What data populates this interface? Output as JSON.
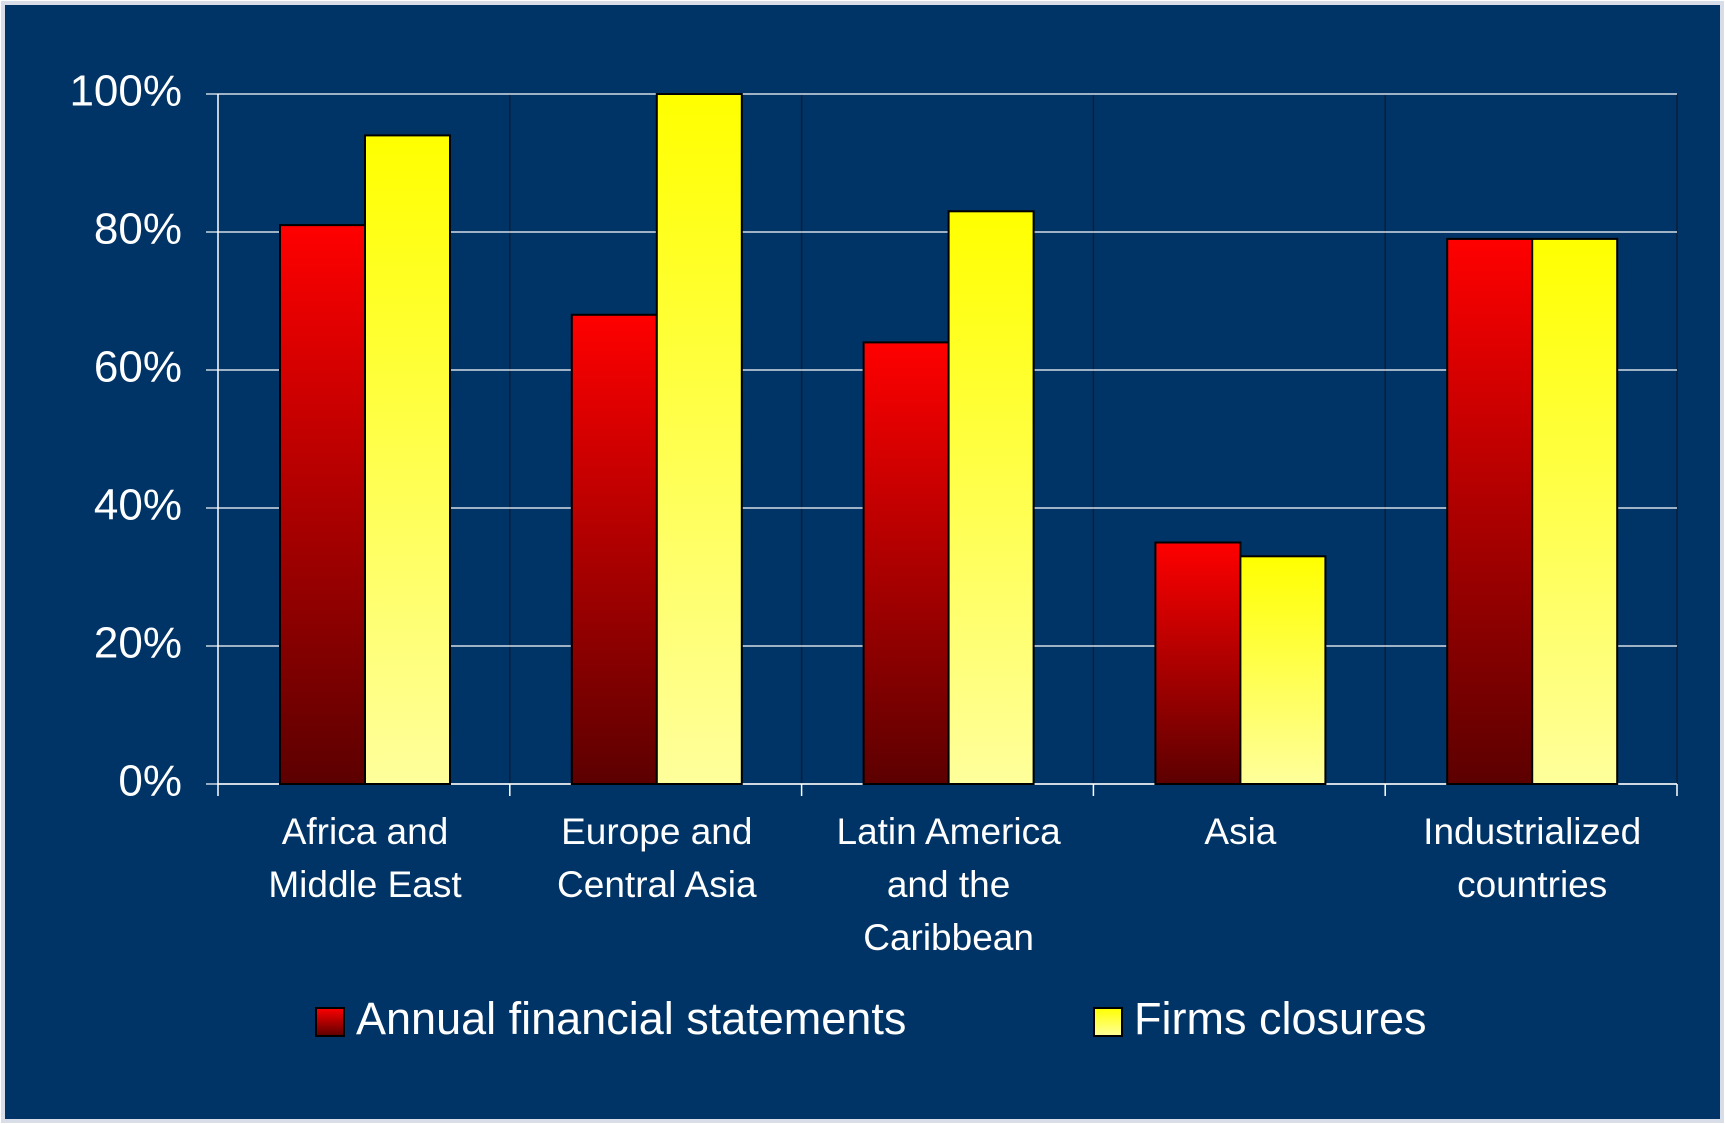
{
  "chart_data": {
    "type": "bar",
    "categories": [
      "Africa and Middle East",
      "Europe and Central Asia",
      "Latin America and the Caribbean",
      "Asia",
      "Industrialized countries"
    ],
    "series": [
      {
        "name": "Annual financial statements",
        "color": "#ff0000",
        "values": [
          81,
          68,
          64,
          35,
          79
        ]
      },
      {
        "name": "Firms closures",
        "color": "#ffff00",
        "values": [
          94,
          100,
          83,
          33,
          79
        ]
      }
    ],
    "ylim": [
      0,
      100
    ],
    "yticks": [
      {
        "value": 0,
        "label": "0%"
      },
      {
        "value": 20,
        "label": "20%"
      },
      {
        "value": 40,
        "label": "40%"
      },
      {
        "value": 60,
        "label": "60%"
      },
      {
        "value": 80,
        "label": "80%"
      },
      {
        "value": 100,
        "label": "100%"
      }
    ],
    "grid": true
  }
}
